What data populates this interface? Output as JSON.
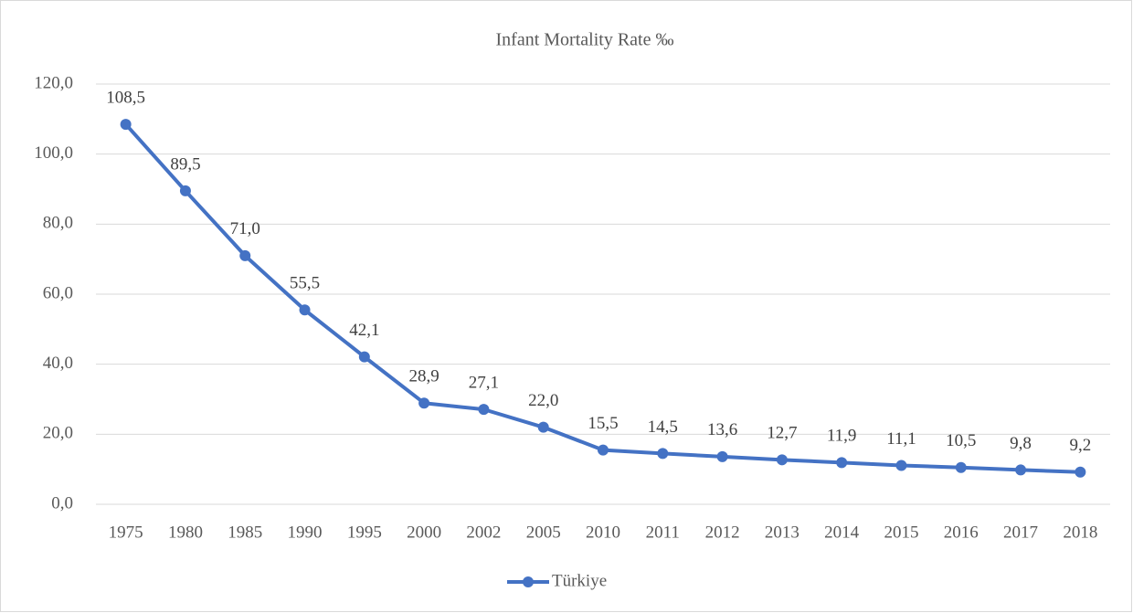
{
  "chart_data": {
    "type": "line",
    "title": "Infant Mortality Rate ‰",
    "categories": [
      "1975",
      "1980",
      "1985",
      "1990",
      "1995",
      "2000",
      "2002",
      "2005",
      "2010",
      "2011",
      "2012",
      "2013",
      "2014",
      "2015",
      "2016",
      "2017",
      "2018"
    ],
    "series": [
      {
        "name": "Türkiye",
        "color": "#4472c4",
        "values": [
          108.5,
          89.5,
          71.0,
          55.5,
          42.1,
          28.9,
          27.1,
          22.0,
          15.5,
          14.5,
          13.6,
          12.7,
          11.9,
          11.1,
          10.5,
          9.8,
          9.2
        ],
        "value_labels": [
          "108,5",
          "89,5",
          "71,0",
          "55,5",
          "42,1",
          "28,9",
          "27,1",
          "22,0",
          "15,5",
          "14,5",
          "13,6",
          "12,7",
          "11,9",
          "11,1",
          "10,5",
          "9,8",
          "9,2"
        ]
      }
    ],
    "ylim": [
      0,
      120
    ],
    "yticks": [
      {
        "value": 0,
        "label": "0,0"
      },
      {
        "value": 20,
        "label": "20,0"
      },
      {
        "value": 40,
        "label": "40,0"
      },
      {
        "value": 60,
        "label": "60,0"
      },
      {
        "value": 80,
        "label": "80,0"
      },
      {
        "value": 100,
        "label": "100,0"
      },
      {
        "value": 120,
        "label": "120,0"
      }
    ],
    "grid": true,
    "legend": "bottom"
  }
}
